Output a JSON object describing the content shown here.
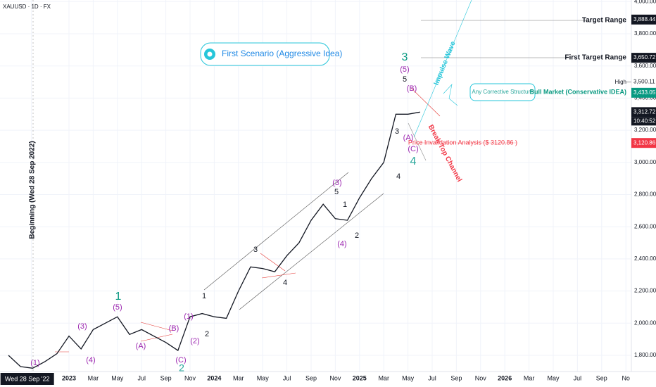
{
  "chart_data": {
    "type": "line",
    "title": "XAUUSD · 1D · FX",
    "color": "#131722",
    "x": [
      "2022-08",
      "2022-09",
      "2022-10",
      "2022-11",
      "2022-12",
      "2023-01",
      "2023-02",
      "2023-03",
      "2023-04",
      "2023-05",
      "2023-06",
      "2023-07",
      "2023-08",
      "2023-09",
      "2023-10",
      "2023-11",
      "2023-12",
      "2024-01",
      "2024-02",
      "2024-03",
      "2024-04",
      "2024-05",
      "2024-06",
      "2024-07",
      "2024-08",
      "2024-09",
      "2024-10",
      "2024-11",
      "2024-12",
      "2025-01",
      "2025-02",
      "2025-03",
      "2025-04",
      "2025-05",
      "2025-06"
    ],
    "values": [
      1800,
      1730,
      1720,
      1760,
      1810,
      1920,
      1840,
      1960,
      2000,
      2040,
      1930,
      1960,
      1920,
      1880,
      1830,
      2040,
      2060,
      2040,
      2030,
      2200,
      2350,
      2340,
      2320,
      2420,
      2500,
      2640,
      2740,
      2650,
      2640,
      2780,
      2900,
      3000,
      3300,
      3300,
      3313
    ],
    "ylim": [
      1700,
      4000
    ],
    "yticks": [
      {
        "value": 1800,
        "label": "1,800.00"
      },
      {
        "value": 2000,
        "label": "2,000.00"
      },
      {
        "value": 2200,
        "label": "2,200.00"
      },
      {
        "value": 2400,
        "label": "2,400.00"
      },
      {
        "value": 2600,
        "label": "2,600.00"
      },
      {
        "value": 2800,
        "label": "2,800.00"
      },
      {
        "value": 3000,
        "label": "3,000.00"
      },
      {
        "value": 3200,
        "label": "3,200.00"
      },
      {
        "value": 3400,
        "label": "3,400.00"
      },
      {
        "value": 3600,
        "label": "3,600.00"
      },
      {
        "value": 3800,
        "label": "3,800.00"
      },
      {
        "value": 4000,
        "label": "4,000.00"
      }
    ],
    "xticks": [
      {
        "value": "2022-09-28",
        "label": "Wed 28 Sep '22"
      },
      {
        "value": "2023-01",
        "label": "2023"
      },
      {
        "value": "2023-03",
        "label": "Mar"
      },
      {
        "value": "2023-05",
        "label": "May"
      },
      {
        "value": "2023-07",
        "label": "Jul"
      },
      {
        "value": "2023-09",
        "label": "Sep"
      },
      {
        "value": "2023-11",
        "label": "Nov"
      },
      {
        "value": "2024-01",
        "label": "2024"
      },
      {
        "value": "2024-03",
        "label": "Mar"
      },
      {
        "value": "2024-05",
        "label": "May"
      },
      {
        "value": "2024-07",
        "label": "Jul"
      },
      {
        "value": "2024-09",
        "label": "Sep"
      },
      {
        "value": "2024-11",
        "label": "Nov"
      },
      {
        "value": "2025-01",
        "label": "2025"
      },
      {
        "value": "2025-03",
        "label": "Mar"
      },
      {
        "value": "2025-05",
        "label": "May"
      },
      {
        "value": "2025-07",
        "label": "Jul"
      },
      {
        "value": "2025-09",
        "label": "Sep"
      },
      {
        "value": "2025-11",
        "label": "Nov"
      },
      {
        "value": "2026-01",
        "label": "2026"
      },
      {
        "value": "2026-03",
        "label": "Mar"
      },
      {
        "value": "2026-05",
        "label": "May"
      },
      {
        "value": "2026-07",
        "label": "Jul"
      },
      {
        "value": "2026-09",
        "label": "Sep"
      },
      {
        "value": "2026-11",
        "label": "No"
      }
    ],
    "price_labels": [
      {
        "value": 3888.44,
        "label": "3,888.44"
      },
      {
        "value": 3650.72,
        "label": "3,650.72"
      },
      {
        "value": 3500.11,
        "label": "3,500.11"
      },
      {
        "value": 3433.05,
        "label": "3,433.05"
      },
      {
        "value": 3312.72,
        "label": "3,312.72"
      },
      {
        "value": 3120.86,
        "label": "3,120.86"
      }
    ],
    "clock": "10:40:52",
    "notes": [
      "Target Range",
      "First Target Range",
      "High",
      "Bull Market (Conservative IDEA)",
      "Price Invalidation Analysis ($ 3120.86 )",
      "First Scenario (Aggressive Idea)",
      "Any Corrective Structure",
      "Impulse Wave",
      "Break Top Channel",
      "Beginning (Wed 28 Sep 2022)"
    ],
    "wave_labels": [
      "(1)",
      "(3)",
      "(4)",
      "(5)",
      "1",
      "(A)",
      "(B)",
      "(C)",
      "2",
      "(1)",
      "(2)",
      "1",
      "2",
      "3",
      "4",
      "(3)",
      "5",
      "1",
      "(4)",
      "2",
      "4",
      "3",
      "3",
      "(5)",
      "5",
      "(B)",
      "(A)",
      "(C)",
      "4"
    ]
  }
}
